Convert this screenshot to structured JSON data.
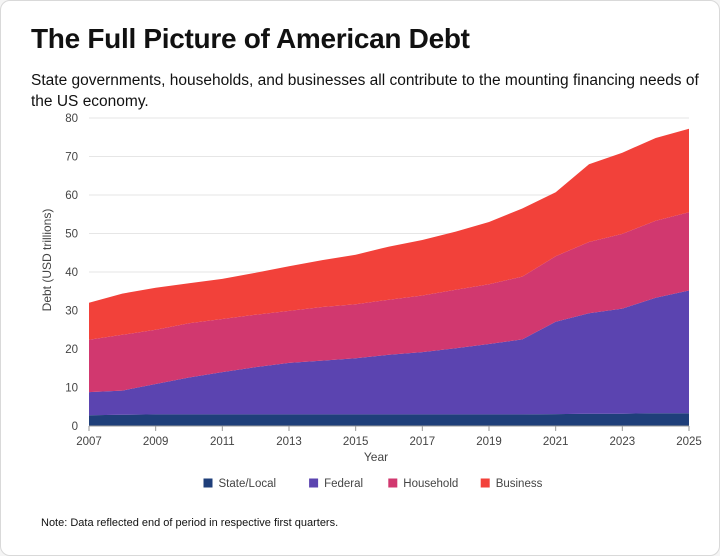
{
  "header": {
    "title": "The Full Picture of American Debt",
    "subtitle": "State governments, households, and businesses all contribute to the mounting financing needs of the US economy."
  },
  "footer": {
    "note": "Note: Data reflected end of period in respective first quarters."
  },
  "chart_data": {
    "type": "area",
    "stacked": true,
    "x": [
      2007,
      2008,
      2009,
      2010,
      2011,
      2012,
      2013,
      2014,
      2015,
      2016,
      2017,
      2018,
      2019,
      2020,
      2021,
      2022,
      2023,
      2024,
      2025
    ],
    "xticks": [
      "2007",
      "2009",
      "2011",
      "2013",
      "2015",
      "2017",
      "2019",
      "2021",
      "2023",
      "2025"
    ],
    "yticks": [
      "0",
      "10",
      "20",
      "30",
      "40",
      "50",
      "60",
      "70",
      "80"
    ],
    "xlabel": "Year",
    "ylabel": "Debt (USD trillions)",
    "ylim": [
      0,
      80
    ],
    "grid": "horizontal",
    "legend_position": "bottom",
    "series": [
      {
        "name": "State/Local",
        "color": "#1f3f7a",
        "values": [
          2.8,
          2.9,
          3.0,
          3.0,
          3.0,
          3.0,
          3.0,
          3.0,
          3.0,
          3.0,
          3.0,
          3.0,
          3.0,
          3.0,
          3.1,
          3.2,
          3.2,
          3.3,
          3.3
        ]
      },
      {
        "name": "Federal",
        "color": "#5b44b0",
        "values": [
          6.0,
          6.3,
          7.9,
          9.6,
          11.0,
          12.3,
          13.4,
          14.0,
          14.6,
          15.5,
          16.2,
          17.2,
          18.3,
          19.5,
          24.0,
          26.1,
          27.3,
          30.0,
          31.9
        ]
      },
      {
        "name": "Household",
        "color": "#d1386f",
        "values": [
          13.6,
          14.5,
          14.1,
          14.1,
          13.8,
          13.6,
          13.5,
          13.9,
          14.0,
          14.3,
          14.7,
          15.2,
          15.5,
          16.3,
          17.0,
          18.5,
          19.4,
          20.0,
          20.3
        ]
      },
      {
        "name": "Business",
        "color": "#f2413a",
        "values": [
          9.6,
          10.7,
          10.9,
          10.4,
          10.4,
          10.9,
          11.6,
          12.2,
          12.9,
          13.8,
          14.4,
          15.1,
          16.2,
          17.7,
          16.6,
          20.2,
          21.1,
          21.5,
          21.7
        ]
      }
    ]
  }
}
